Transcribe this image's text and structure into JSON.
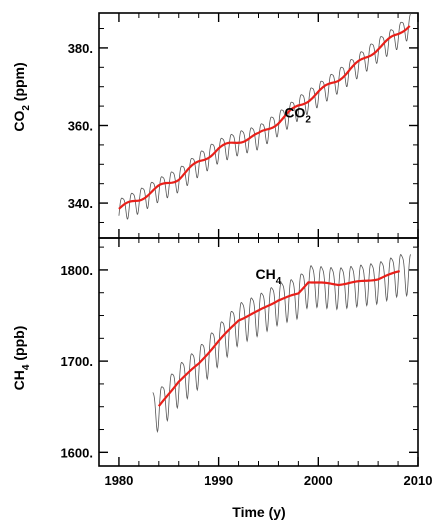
{
  "chart_data": [
    {
      "type": "line",
      "panel": "top",
      "ylabel_main": "CO",
      "ylabel_sub": "2",
      "ylabel_units": " (ppm)",
      "xlim": [
        1978,
        2010
      ],
      "ylim": [
        331,
        389
      ],
      "yticks": [
        340,
        360,
        380
      ],
      "ytick_labels": [
        "340.",
        "360.",
        "380."
      ],
      "series_label_main": "CO",
      "series_label_sub": "2",
      "series_label_at": [
        1996.6,
        362
      ],
      "colors": {
        "raw": "#555555",
        "trend": "#e8201a"
      },
      "trend": {
        "x": [
          1980,
          1982,
          1984,
          1986,
          1988,
          1990,
          1992,
          1994,
          1996,
          1998,
          2000,
          2002,
          2004,
          2006,
          2008,
          2009.3
        ],
        "y": [
          338.5,
          341,
          344,
          346.5,
          350.5,
          354,
          356,
          357.5,
          361,
          365,
          368.5,
          372,
          376,
          380,
          383.5,
          386.5
        ]
      },
      "seasonal_amplitude": 3
    },
    {
      "type": "line",
      "panel": "bottom",
      "ylabel_main": "CH",
      "ylabel_sub": "4",
      "ylabel_units": " (ppb)",
      "xlabel": "Time (y)",
      "xlim": [
        1978,
        2010
      ],
      "ylim": [
        1585,
        1835
      ],
      "yticks": [
        1600,
        1700,
        1800
      ],
      "ytick_labels": [
        "1600.",
        "1700.",
        "1800."
      ],
      "xticks": [
        1980,
        1990,
        2000,
        2010
      ],
      "xtick_labels": [
        "1980",
        "1990",
        "2000",
        "2010"
      ],
      "series_label_main": "CH",
      "series_label_sub": "4",
      "series_label_at": [
        1993.7,
        1790
      ],
      "colors": {
        "raw": "#555555",
        "trend": "#e8201a"
      },
      "trend": {
        "x": [
          1984,
          1986,
          1988,
          1990,
          1992,
          1994,
          1996,
          1998,
          1999,
          2000,
          2002,
          2004,
          2006,
          2008.2
        ],
        "y": [
          1650,
          1678,
          1697,
          1722,
          1745,
          1755,
          1767,
          1774,
          1787,
          1786,
          1784,
          1787,
          1790,
          1799
        ]
      },
      "raw_start": 1983.4,
      "raw_end": 2009.3,
      "seasonal_amplitude": 22
    }
  ]
}
